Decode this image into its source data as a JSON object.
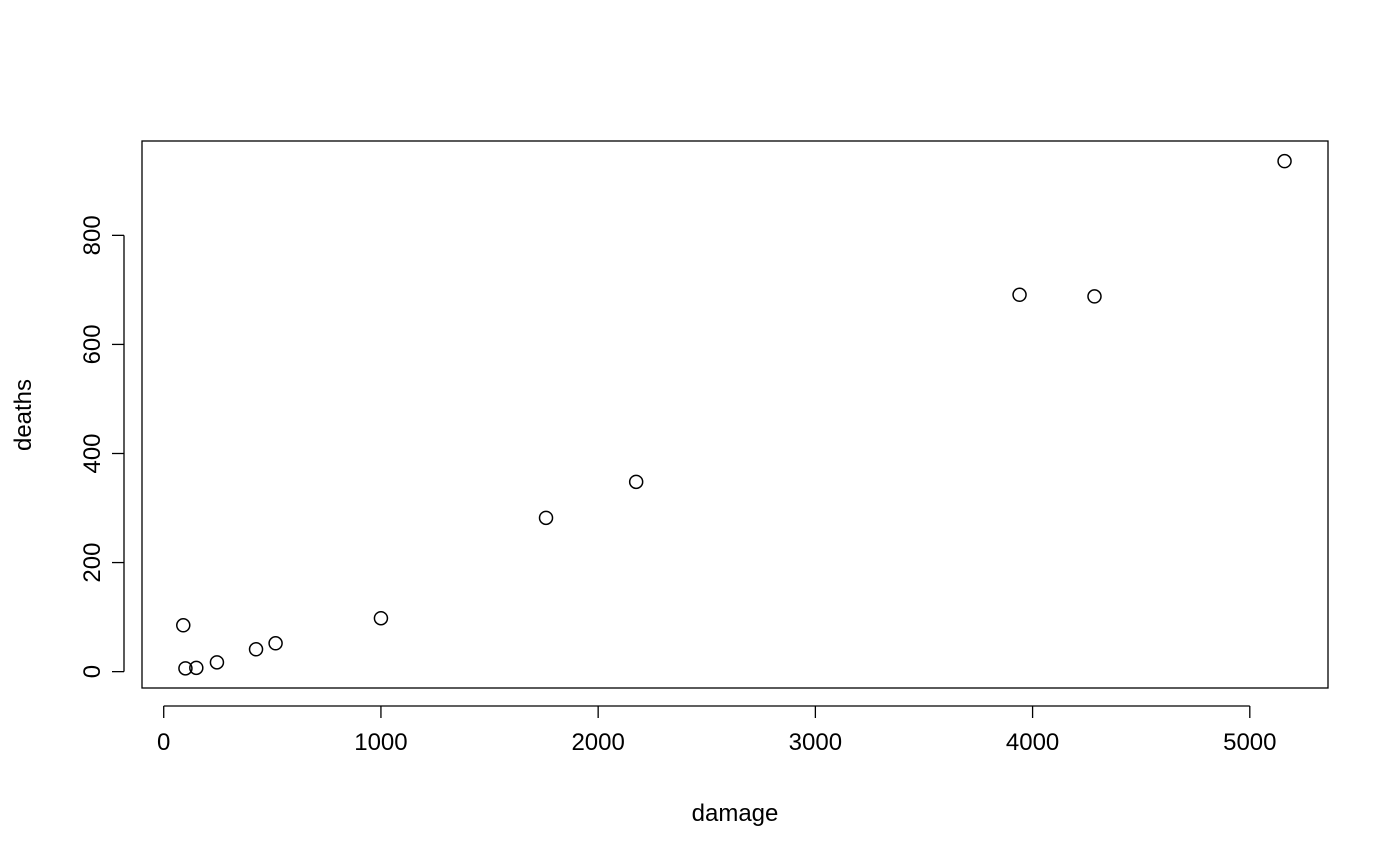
{
  "chart_data": {
    "type": "scatter",
    "title": "",
    "xlabel": "damage",
    "ylabel": "deaths",
    "xlim": [
      -100,
      5360
    ],
    "ylim": [
      -30,
      973
    ],
    "x_ticks": [
      0,
      1000,
      2000,
      3000,
      4000,
      5000
    ],
    "y_ticks": [
      0,
      200,
      400,
      600,
      800
    ],
    "grid": false,
    "points": [
      {
        "x": 90,
        "y": 85
      },
      {
        "x": 100,
        "y": 6
      },
      {
        "x": 150,
        "y": 7
      },
      {
        "x": 245,
        "y": 17
      },
      {
        "x": 425,
        "y": 41
      },
      {
        "x": 515,
        "y": 52
      },
      {
        "x": 1000,
        "y": 98
      },
      {
        "x": 1760,
        "y": 282
      },
      {
        "x": 2175,
        "y": 348
      },
      {
        "x": 3940,
        "y": 691
      },
      {
        "x": 4285,
        "y": 688
      },
      {
        "x": 5160,
        "y": 936
      }
    ]
  }
}
